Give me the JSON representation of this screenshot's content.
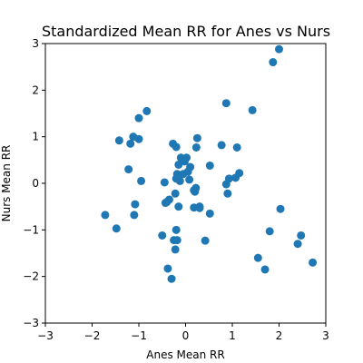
{
  "chart_data": {
    "type": "scatter",
    "title": "Standardized Mean RR for Anes vs Nurs",
    "xlabel": "Anes Mean RR",
    "ylabel": "Nurs Mean RR",
    "xlim": [
      -3,
      3
    ],
    "ylim": [
      -3,
      3
    ],
    "xticks": [
      -3,
      -2,
      -1,
      0,
      1,
      2,
      3
    ],
    "yticks": [
      -3,
      -2,
      -1,
      0,
      1,
      2,
      3
    ],
    "grid": false,
    "marker_color": "#1f77b4",
    "series": [
      {
        "x": [
          2.0,
          1.87,
          0.87,
          1.43,
          1.1,
          1.15,
          1.07,
          0.93,
          0.87,
          0.9,
          0.77,
          0.52,
          0.25,
          0.23,
          0.02,
          -0.02,
          -0.1,
          -0.15,
          -0.2,
          -0.27,
          -0.35,
          -0.43,
          -0.4,
          -0.12,
          -0.05,
          0.05,
          0.1,
          0.08,
          0.18,
          0.2,
          0.22,
          0.3,
          -0.18,
          -0.2,
          -0.22,
          -0.15,
          -0.2,
          -0.38,
          -0.3,
          -0.5,
          -0.83,
          -1.0,
          -1.0,
          -1.12,
          -1.42,
          -1.18,
          -1.22,
          -0.95,
          -1.08,
          -1.1,
          -1.48,
          -1.72,
          -0.45,
          -0.25,
          -0.22,
          -0.18,
          0.18,
          0.3,
          0.42,
          0.52,
          1.55,
          1.7,
          1.8,
          2.03,
          2.4,
          2.47,
          2.72
        ],
        "y": [
          2.88,
          2.6,
          1.72,
          1.57,
          0.77,
          0.22,
          0.12,
          0.1,
          -0.02,
          -0.22,
          0.82,
          0.38,
          0.97,
          0.77,
          0.55,
          0.47,
          0.55,
          0.4,
          0.78,
          0.85,
          -0.35,
          -0.42,
          -0.4,
          0.05,
          0.2,
          0.25,
          0.35,
          0.08,
          -0.15,
          -0.18,
          -0.1,
          -0.5,
          0.2,
          0.1,
          -0.22,
          -0.5,
          -1.0,
          -1.83,
          -2.05,
          -1.12,
          1.55,
          1.4,
          0.95,
          1.0,
          0.92,
          0.85,
          0.3,
          0.05,
          -0.45,
          -0.68,
          -0.97,
          -0.68,
          0.02,
          -1.22,
          -1.42,
          -1.22,
          -0.52,
          -0.53,
          -1.23,
          -0.65,
          -1.6,
          -1.85,
          -1.03,
          -0.55,
          -1.3,
          -1.12,
          -1.7
        ]
      }
    ]
  }
}
